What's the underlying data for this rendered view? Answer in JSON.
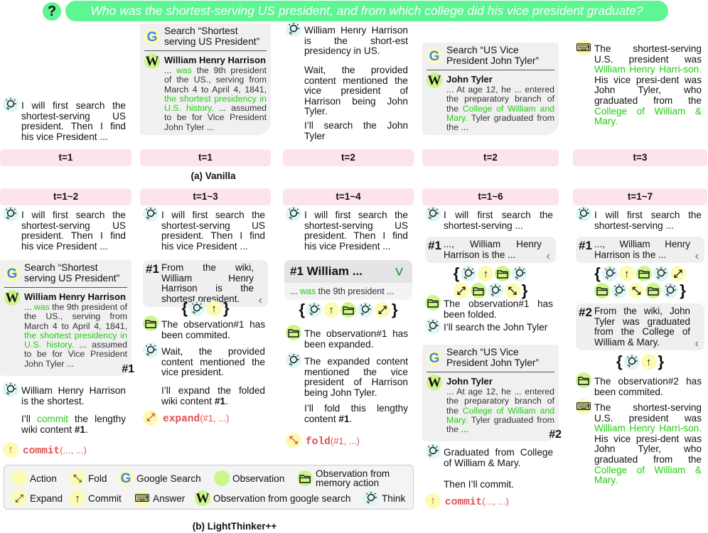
{
  "question": "Who was the shortest-serving US president, and from which college did his vice president graduate?",
  "colors": {
    "question_bg": "#5ef593",
    "highlight": "#22cc11",
    "label_bg": "#fde3ea",
    "code": "#e05050",
    "action_bg": "#fbfbb2",
    "observation_bg": "#ccf58a",
    "think_bg": "#dcf7f5"
  },
  "vanilla": {
    "caption": "(a) Vanilla",
    "labels": [
      "t=1",
      "t=1",
      "t=2",
      "t=2",
      "t=3"
    ],
    "columns": [
      [
        {
          "type": "think",
          "text": [
            {
              "t": "I will first search the shortest-serving US president. Then I find his vice President ..."
            }
          ]
        }
      ],
      [
        {
          "type": "search",
          "query": "Search “Shortest serving US President”",
          "title": "William Henry Harrison",
          "body": [
            {
              "t": "... "
            },
            {
              "t": "was",
              "g": true
            },
            {
              "t": " the 9th president of the US., serving from March 4 to April 4, 1841, "
            },
            {
              "t": "the shortest presidency in U.S. history.",
              "g": true
            },
            {
              "t": " ... assumed to be for Vice President John Tyler ..."
            }
          ]
        }
      ],
      [
        {
          "type": "think",
          "text": [
            {
              "t": "William Henry Harrison is the short-est presidency in US."
            }
          ]
        },
        {
          "type": "text",
          "text": [
            {
              "t": "Wait, the provided content mentioned the vice president of Harrison being John Tyler."
            }
          ]
        },
        {
          "type": "text",
          "text": [
            {
              "t": "I’ll search the John Tyler"
            }
          ]
        }
      ],
      [
        {
          "type": "search",
          "query": "Search “US Vice President John Tyler”",
          "title": "John Tyler",
          "body": [
            {
              "t": "... At age 12, he ... entered the preparatory branch of the "
            },
            {
              "t": "College of William and Mary.",
              "g": true
            },
            {
              "t": " Tyler graduated from the ..."
            }
          ]
        }
      ],
      [
        {
          "type": "answer",
          "text": [
            {
              "t": "The shortest-serving U.S. president was "
            },
            {
              "t": "William Henry Harri-son.",
              "g": true
            },
            {
              "t": " His vice presi-dent was John Tyler, who graduated from the "
            },
            {
              "t": "College of William & Mary.",
              "g": true
            }
          ]
        }
      ]
    ]
  },
  "lightthinker": {
    "caption": "(b) LightThinker++",
    "labels": [
      "t=1~2",
      "t=1~3",
      "t=1~4",
      "t=1~6",
      "t=1~7"
    ],
    "columns": [
      [
        {
          "type": "think",
          "text": [
            {
              "t": "I will first search the shortest-serving US president. Then I find his vice President ..."
            }
          ]
        },
        {
          "type": "search",
          "query": "Search “Shortest serving US President”",
          "title": "William Henry Harrison",
          "tag": "#1",
          "body": [
            {
              "t": "... "
            },
            {
              "t": "was",
              "g": true
            },
            {
              "t": " the 9th president of the US., serving from March 4 to April 4, 1841, "
            },
            {
              "t": "the shortest presidency in U.S. history.",
              "g": true
            },
            {
              "t": " ... assumed to be for Vice President John Tyler ..."
            }
          ]
        },
        {
          "type": "think",
          "text": [
            {
              "t": "William Henry Harrison is the shortest."
            }
          ]
        },
        {
          "type": "text",
          "text": [
            {
              "t": "I’ll "
            },
            {
              "t": "commit",
              "g": true
            },
            {
              "t": " the lengthy wiki content "
            },
            {
              "t": "#1",
              "b": true
            },
            {
              "t": "."
            }
          ]
        },
        {
          "type": "action",
          "icon": "commit",
          "code": "commit",
          "args": "(..., ...)"
        }
      ],
      [
        {
          "type": "think",
          "text": [
            {
              "t": "I will first search the shortest-serving US president. Then I find his vice President ..."
            }
          ]
        },
        {
          "type": "memory",
          "id": "#1",
          "text": "From the wiki, William Henry Harrison is the shortest president.",
          "chevron": "‹"
        },
        {
          "type": "braces",
          "rows": [
            [
              "think",
              "commit"
            ]
          ]
        },
        {
          "type": "folder",
          "text": [
            {
              "t": "The observation#1 has been commited."
            }
          ]
        },
        {
          "type": "think",
          "text": [
            {
              "t": "Wait, the provided content mentioned the vice president."
            }
          ]
        },
        {
          "type": "text",
          "text": [
            {
              "t": "I’ll expand the folded wiki content "
            },
            {
              "t": "#1",
              "b": true
            },
            {
              "t": "."
            }
          ]
        },
        {
          "type": "action",
          "icon": "expand",
          "code": "expand",
          "args": "(#1, ...)"
        }
      ],
      [
        {
          "type": "think",
          "text": [
            {
              "t": "I will first search the shortest-serving US president. Then I find his vice President ..."
            }
          ]
        },
        {
          "type": "expanded",
          "id": "#1",
          "title": "William ...",
          "chevron": "˅",
          "body": [
            {
              "t": "... "
            },
            {
              "t": "was",
              "g": true
            },
            {
              "t": " the 9th president ..."
            }
          ]
        },
        {
          "type": "braces",
          "rows": [
            [
              "think",
              "commit",
              "folder",
              "think",
              "expand"
            ]
          ]
        },
        {
          "type": "folder",
          "text": [
            {
              "t": "The observation#1 has been expanded."
            }
          ]
        },
        {
          "type": "think",
          "text": [
            {
              "t": "The expanded content mentioned the vice president of Harrison being John Tyler."
            }
          ]
        },
        {
          "type": "text",
          "text": [
            {
              "t": "I’ll fold this lengthy content "
            },
            {
              "t": "#1",
              "b": true
            },
            {
              "t": "."
            }
          ]
        },
        {
          "type": "action",
          "icon": "fold",
          "code": "fold",
          "args": "(#1, ...)"
        }
      ],
      [
        {
          "type": "think",
          "text": [
            {
              "t": "I will first search the shortest-serving ..."
            }
          ]
        },
        {
          "type": "memory",
          "id": "#1",
          "text": "..., William Henry Harrison is the ...",
          "chevron": "‹"
        },
        {
          "type": "braces",
          "rows": [
            [
              "think",
              "commit",
              "folder",
              "think"
            ],
            [
              "expand",
              "folder",
              "think",
              "fold"
            ]
          ]
        },
        {
          "type": "folder",
          "text": [
            {
              "t": "The observation#1 has been folded."
            }
          ]
        },
        {
          "type": "think",
          "text": [
            {
              "t": "I’ll search the John Tyler"
            }
          ]
        },
        {
          "type": "search",
          "query": "Search “US Vice President John Tyler”",
          "title": "John Tyler",
          "tag": "#2",
          "body": [
            {
              "t": "... At age 12, he ... entered the preparatory branch of the "
            },
            {
              "t": "College of William and Mary.",
              "g": true
            },
            {
              "t": " Tyler graduated from the ..."
            }
          ]
        },
        {
          "type": "think",
          "text": [
            {
              "t": "Graduated from College of William & Mary."
            }
          ]
        },
        {
          "type": "text",
          "text": [
            {
              "t": "Then I’ll commit."
            }
          ]
        },
        {
          "type": "action",
          "icon": "commit",
          "code": "commit",
          "args": "(..., ...)"
        }
      ],
      [
        {
          "type": "think",
          "text": [
            {
              "t": "I will first search the shortest-serving ..."
            }
          ]
        },
        {
          "type": "memory",
          "id": "#1",
          "text": "..., William Henry Harrison is the ...",
          "chevron": "‹"
        },
        {
          "type": "braces",
          "rows": [
            [
              "think",
              "commit",
              "folder",
              "think",
              "expand"
            ],
            [
              "folder",
              "think",
              "fold",
              "folder",
              "think"
            ]
          ]
        },
        {
          "type": "memory",
          "id": "#2",
          "text": "From the wiki, John Tyler was graduated from the College of William & Mary.",
          "chevron": "‹"
        },
        {
          "type": "braces",
          "rows": [
            [
              "think",
              "commit"
            ]
          ]
        },
        {
          "type": "folder",
          "text": [
            {
              "t": "The observation#2 has been commited."
            }
          ]
        },
        {
          "type": "answer",
          "text": [
            {
              "t": "The shortest-serving U.S. president was "
            },
            {
              "t": "William Henry Harri-son.",
              "g": true
            },
            {
              "t": " His vice presi-dent was John Tyler, who graduated from the "
            },
            {
              "t": "College of William & Mary.",
              "g": true
            }
          ]
        }
      ]
    ]
  },
  "legend": [
    {
      "icon": "action",
      "label": "Action"
    },
    {
      "icon": "fold",
      "label": "Fold"
    },
    {
      "icon": "google",
      "label": "Google Search"
    },
    {
      "icon": "observation",
      "label": "Observation"
    },
    {
      "icon": "folder",
      "label": "Observation from memory action"
    },
    {
      "icon": "expand",
      "label": "Expand"
    },
    {
      "icon": "commit",
      "label": "Commit"
    },
    {
      "icon": "answer",
      "label": "Answer"
    },
    {
      "icon": "wiki",
      "label": "Observation from google search"
    },
    {
      "icon": "think",
      "label": "Think"
    }
  ]
}
